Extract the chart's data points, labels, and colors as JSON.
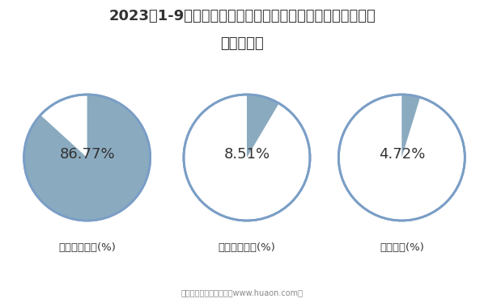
{
  "title_line1": "2023年1-9月江西国有及国有控股建筑业工程、安装工程及其",
  "title_line2": "他产值结构",
  "slices": [
    {
      "label": "建筑工程产值(%)",
      "value": 86.77,
      "fill_color": "#8aaabf",
      "edge_color": "#7a9ec6"
    },
    {
      "label": "安装工程产值(%)",
      "value": 8.51,
      "fill_color": "#8aaabf",
      "edge_color": "#7a9ec6"
    },
    {
      "label": "其他产值(%)",
      "value": 4.72,
      "fill_color": "#8aaabf",
      "edge_color": "#7a9ec6"
    }
  ],
  "bg_color": "#ffffff",
  "text_color": "#333333",
  "label_fontsize": 9.5,
  "value_fontsize": 13,
  "title_fontsize": 13,
  "footer_text": "制图：华经产业研究院（www.huaon.com）"
}
